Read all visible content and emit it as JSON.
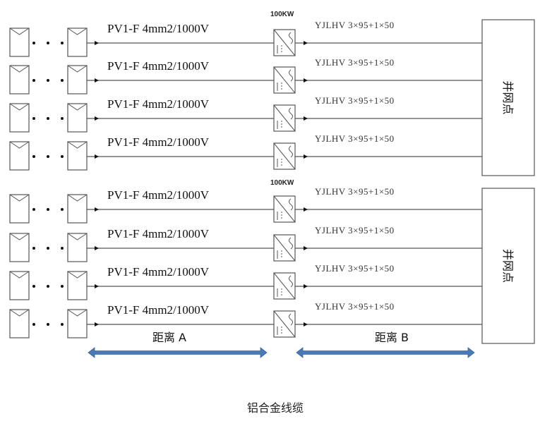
{
  "groups": [
    {
      "inverter_rating": "100KW",
      "grid_point_label": "并网点",
      "rows": [
        {
          "dc_cable": "PV1-F 4mm2/1000V",
          "ac_cable": "YJLHV 3×95+1×50"
        },
        {
          "dc_cable": "PV1-F 4mm2/1000V",
          "ac_cable": "YJLHV 3×95+1×50"
        },
        {
          "dc_cable": "PV1-F 4mm2/1000V",
          "ac_cable": "YJLHV 3×95+1×50"
        },
        {
          "dc_cable": "PV1-F 4mm2/1000V",
          "ac_cable": "YJLHV 3×95+1×50"
        }
      ]
    },
    {
      "inverter_rating": "100KW",
      "grid_point_label": "并网点",
      "rows": [
        {
          "dc_cable": "PV1-F 4mm2/1000V",
          "ac_cable": "YJLHV 3×95+1×50"
        },
        {
          "dc_cable": "PV1-F 4mm2/1000V",
          "ac_cable": "YJLHV 3×95+1×50"
        },
        {
          "dc_cable": "PV1-F 4mm2/1000V",
          "ac_cable": "YJLHV 3×95+1×50"
        },
        {
          "dc_cable": "PV1-F 4mm2/1000V",
          "ac_cable": "YJLHV 3×95+1×50"
        }
      ]
    }
  ],
  "distance_a_label": "距离 A",
  "distance_b_label": "距离 B",
  "caption": "铝合金线缆",
  "colors": {
    "line": "#555555",
    "distance_arrow": "#4a7ab5",
    "box_border": "#555555"
  }
}
